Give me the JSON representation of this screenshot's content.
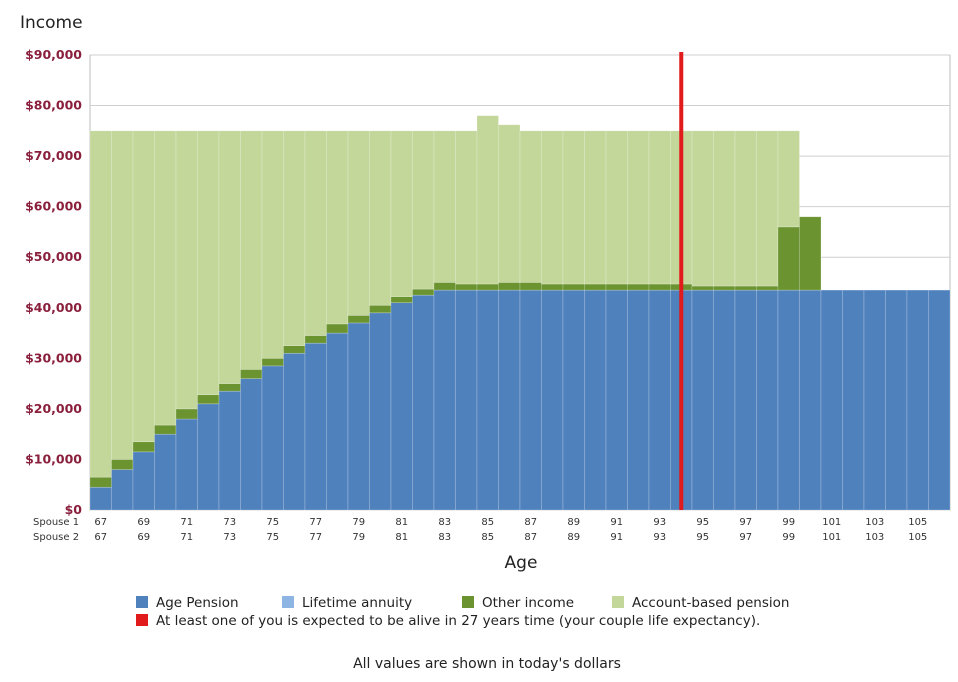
{
  "chart_data": {
    "type": "bar",
    "stacked": true,
    "ylabel": "Income",
    "xlabel": "Age",
    "ylim": [
      0,
      90000
    ],
    "y_ticks": [
      "$0",
      "$10,000",
      "$20,000",
      "$30,000",
      "$40,000",
      "$50,000",
      "$60,000",
      "$70,000",
      "$80,000",
      "$90,000"
    ],
    "y_tick_values": [
      0,
      10000,
      20000,
      30000,
      40000,
      50000,
      60000,
      70000,
      80000,
      90000
    ],
    "x_row_labels": [
      "Spouse 1",
      "Spouse 2"
    ],
    "spouse1_ages": [
      67,
      68,
      69,
      70,
      71,
      72,
      73,
      74,
      75,
      76,
      77,
      78,
      79,
      80,
      81,
      82,
      83,
      84,
      85,
      86,
      87,
      88,
      89,
      90,
      91,
      92,
      93,
      94,
      95,
      96,
      97,
      98,
      99,
      100,
      101,
      102,
      103,
      104,
      105,
      106
    ],
    "spouse1_tick_labels": [
      "67",
      "69",
      "71",
      "73",
      "75",
      "77",
      "79",
      "81",
      "83",
      "85",
      "87",
      "89",
      "91",
      "93",
      "95",
      "97",
      "99",
      "101",
      "103",
      "105"
    ],
    "spouse2_tick_labels": [
      "67",
      "69",
      "71",
      "73",
      "75",
      "77",
      "79",
      "81",
      "83",
      "85",
      "87",
      "89",
      "91",
      "93",
      "95",
      "97",
      "99",
      "101",
      "103",
      "105"
    ],
    "grid": true,
    "colors": {
      "Age Pension": "#4f81bd",
      "Lifetime annuity": "#8db4e2",
      "Other income": "#6b9431",
      "Account-based pension": "#c4d79b",
      "Life expectancy": "#e11b1b"
    },
    "series": [
      {
        "name": "Age Pension",
        "values": [
          4500,
          8000,
          11500,
          15000,
          18000,
          21000,
          23500,
          26000,
          28500,
          31000,
          33000,
          35000,
          37000,
          39000,
          41000,
          42500,
          43500,
          43500,
          43500,
          43500,
          43500,
          43500,
          43500,
          43500,
          43500,
          43500,
          43500,
          43500,
          43500,
          43500,
          43500,
          43500,
          43500,
          43500,
          43500,
          43500,
          43500,
          43500,
          43500,
          43500
        ]
      },
      {
        "name": "Lifetime annuity",
        "values": [
          0,
          0,
          0,
          0,
          0,
          0,
          0,
          0,
          0,
          0,
          0,
          0,
          0,
          0,
          0,
          0,
          0,
          0,
          0,
          0,
          0,
          0,
          0,
          0,
          0,
          0,
          0,
          0,
          0,
          0,
          0,
          0,
          0,
          0,
          0,
          0,
          0,
          0,
          0,
          0
        ]
      },
      {
        "name": "Other income",
        "values": [
          2000,
          2000,
          2000,
          1800,
          2000,
          1800,
          1500,
          1800,
          1500,
          1500,
          1500,
          1800,
          1500,
          1500,
          1200,
          1200,
          1500,
          1200,
          1200,
          1500,
          1500,
          1200,
          1200,
          1200,
          1200,
          1200,
          1200,
          1200,
          800,
          800,
          800,
          800,
          12500,
          14500,
          0,
          0,
          0,
          0,
          0,
          0
        ]
      },
      {
        "name": "Account-based pension",
        "values": [
          68500,
          65000,
          61500,
          58200,
          55000,
          52200,
          50000,
          47200,
          45000,
          42500,
          40500,
          38200,
          36500,
          34500,
          32800,
          31300,
          30000,
          30300,
          33300,
          31200,
          30000,
          30300,
          30300,
          30300,
          30300,
          30300,
          30300,
          30300,
          30700,
          30700,
          30700,
          30700,
          19000,
          0,
          0,
          0,
          0,
          0,
          0,
          0
        ]
      }
    ],
    "life_expectancy_marker": {
      "x_position_age": 94.5,
      "label": "At least one of you is expected to be alive in 27 years time (your couple life expectancy)."
    },
    "legend": [
      {
        "name": "Age Pension",
        "color": "#4f81bd"
      },
      {
        "name": "Lifetime annuity",
        "color": "#8db4e2"
      },
      {
        "name": "Other income",
        "color": "#6b9431"
      },
      {
        "name": "Account-based pension",
        "color": "#c4d79b"
      }
    ],
    "footnote": "All values are shown in today's dollars"
  }
}
